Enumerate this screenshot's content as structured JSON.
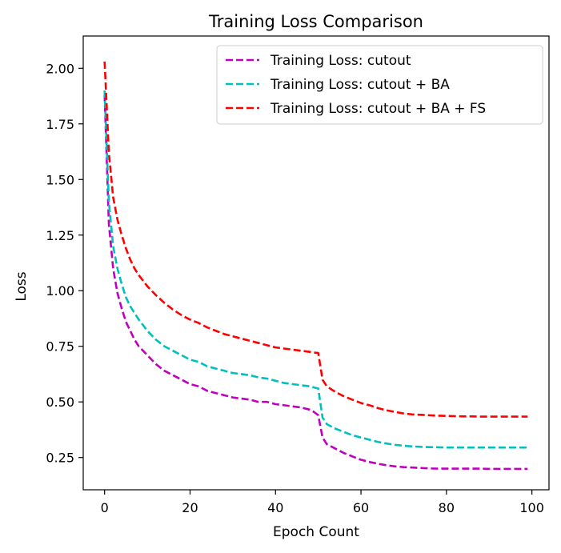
{
  "chart_data": {
    "type": "line",
    "title": "Training Loss Comparison",
    "xlabel": "Epoch Count",
    "ylabel": "Loss",
    "xlim": [
      -5,
      104
    ],
    "ylim": [
      0.105,
      2.145
    ],
    "xticks": [
      "0",
      "20",
      "40",
      "60",
      "80",
      "100"
    ],
    "yticks": [
      "0.25",
      "0.50",
      "0.75",
      "1.00",
      "1.25",
      "1.50",
      "1.75",
      "2.00"
    ],
    "grid": false,
    "legend_position": "top-right",
    "line_style": "dashed",
    "x": [
      0,
      1,
      2,
      3,
      4,
      5,
      6,
      7,
      8,
      10,
      12,
      14,
      16,
      18,
      20,
      22,
      24,
      26,
      28,
      30,
      32,
      34,
      36,
      38,
      40,
      42,
      44,
      46,
      48,
      49,
      50,
      51,
      52,
      54,
      56,
      58,
      60,
      62,
      64,
      66,
      68,
      70,
      72,
      74,
      76,
      78,
      80,
      82,
      84,
      86,
      88,
      90,
      92,
      94,
      96,
      98,
      99
    ],
    "series": [
      {
        "name": "Training Loss: cutout",
        "color": "#bf00bf",
        "values": [
          1.88,
          1.3,
          1.1,
          0.99,
          0.92,
          0.86,
          0.82,
          0.78,
          0.75,
          0.71,
          0.67,
          0.64,
          0.62,
          0.6,
          0.58,
          0.57,
          0.55,
          0.54,
          0.53,
          0.52,
          0.515,
          0.51,
          0.5,
          0.5,
          0.49,
          0.485,
          0.48,
          0.475,
          0.465,
          0.455,
          0.44,
          0.34,
          0.31,
          0.29,
          0.27,
          0.255,
          0.24,
          0.23,
          0.222,
          0.215,
          0.21,
          0.207,
          0.205,
          0.203,
          0.201,
          0.2,
          0.2,
          0.2,
          0.2,
          0.2,
          0.2,
          0.199,
          0.199,
          0.199,
          0.199,
          0.199,
          0.199
        ]
      },
      {
        "name": "Training Loss: cutout + BA",
        "color": "#00bfbf",
        "values": [
          1.9,
          1.4,
          1.2,
          1.1,
          1.03,
          0.97,
          0.93,
          0.9,
          0.87,
          0.82,
          0.78,
          0.75,
          0.73,
          0.71,
          0.69,
          0.68,
          0.66,
          0.65,
          0.64,
          0.63,
          0.625,
          0.62,
          0.61,
          0.605,
          0.595,
          0.585,
          0.58,
          0.575,
          0.57,
          0.565,
          0.56,
          0.43,
          0.4,
          0.38,
          0.365,
          0.35,
          0.34,
          0.33,
          0.32,
          0.313,
          0.307,
          0.303,
          0.3,
          0.298,
          0.297,
          0.296,
          0.295,
          0.295,
          0.295,
          0.295,
          0.295,
          0.295,
          0.295,
          0.295,
          0.295,
          0.295,
          0.295
        ]
      },
      {
        "name": "Training Loss: cutout + BA + FS",
        "color": "#ff0000",
        "values": [
          2.03,
          1.62,
          1.42,
          1.32,
          1.25,
          1.19,
          1.14,
          1.1,
          1.07,
          1.02,
          0.98,
          0.945,
          0.915,
          0.89,
          0.87,
          0.855,
          0.835,
          0.82,
          0.805,
          0.795,
          0.785,
          0.775,
          0.765,
          0.755,
          0.745,
          0.74,
          0.735,
          0.73,
          0.725,
          0.722,
          0.72,
          0.6,
          0.57,
          0.545,
          0.525,
          0.51,
          0.495,
          0.485,
          0.472,
          0.462,
          0.455,
          0.448,
          0.444,
          0.442,
          0.44,
          0.438,
          0.437,
          0.436,
          0.435,
          0.435,
          0.434,
          0.434,
          0.434,
          0.434,
          0.434,
          0.434,
          0.434
        ]
      }
    ]
  }
}
